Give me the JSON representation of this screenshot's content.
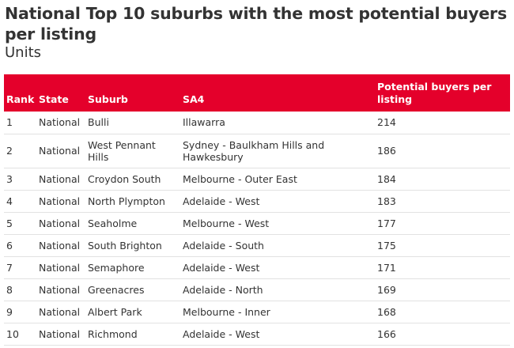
{
  "title": "National Top 10 suburbs with the most potential buyers per listing",
  "subtitle": "Units",
  "columns": {
    "rank": "Rank",
    "state": "State",
    "suburb": "Suburb",
    "sa4": "SA4",
    "potential": "Potential buyers per listing"
  },
  "rows": [
    {
      "rank": "1",
      "state": "National",
      "suburb": "Bulli",
      "sa4": "Illawarra",
      "potential": "214"
    },
    {
      "rank": "2",
      "state": "National",
      "suburb": "West Pennant Hills",
      "sa4": "Sydney - Baulkham Hills and Hawkesbury",
      "potential": "186"
    },
    {
      "rank": "3",
      "state": "National",
      "suburb": "Croydon South",
      "sa4": "Melbourne - Outer East",
      "potential": "184"
    },
    {
      "rank": "4",
      "state": "National",
      "suburb": "North Plympton",
      "sa4": "Adelaide - West",
      "potential": "183"
    },
    {
      "rank": "5",
      "state": "National",
      "suburb": "Seaholme",
      "sa4": "Melbourne - West",
      "potential": "177"
    },
    {
      "rank": "6",
      "state": "National",
      "suburb": "South Brighton",
      "sa4": "Adelaide - South",
      "potential": "175"
    },
    {
      "rank": "7",
      "state": "National",
      "suburb": "Semaphore",
      "sa4": "Adelaide - West",
      "potential": "171"
    },
    {
      "rank": "8",
      "state": "National",
      "suburb": "Greenacres",
      "sa4": "Adelaide - North",
      "potential": "169"
    },
    {
      "rank": "9",
      "state": "National",
      "suburb": "Albert Park",
      "sa4": "Melbourne - Inner",
      "potential": "168"
    },
    {
      "rank": "10",
      "state": "National",
      "suburb": "Richmond",
      "sa4": "Adelaide - West",
      "potential": "166"
    }
  ],
  "colors": {
    "header_bg": "#e4002b",
    "header_text": "#ffffff",
    "text": "#333333",
    "row_border": "#e2e2e2"
  }
}
